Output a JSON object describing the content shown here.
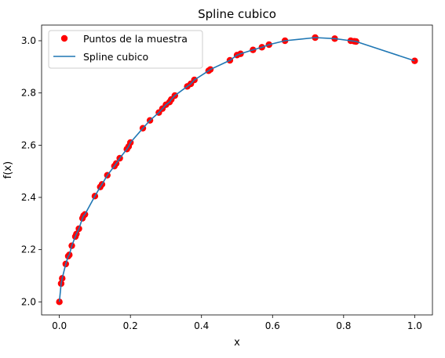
{
  "chart_data": {
    "type": "scatter",
    "title": "Spline cubico",
    "xlabel": "x",
    "ylabel": "f(x)",
    "xlim": [
      -0.05,
      1.05
    ],
    "ylim": [
      1.95,
      3.06
    ],
    "xticks": [
      0.0,
      0.2,
      0.4,
      0.6,
      0.8,
      1.0
    ],
    "xtick_labels": [
      "0.0",
      "0.2",
      "0.4",
      "0.6",
      "0.8",
      "1.0"
    ],
    "yticks": [
      2.0,
      2.2,
      2.4,
      2.6,
      2.8,
      3.0
    ],
    "ytick_labels": [
      "2.0",
      "2.2",
      "2.4",
      "2.6",
      "2.8",
      "3.0"
    ],
    "grid": false,
    "legend_position": "top-left",
    "series": [
      {
        "name": "Puntos de la muestra",
        "kind": "markers",
        "color": "#ff0000",
        "x": [
          0.0,
          0.005,
          0.008,
          0.018,
          0.025,
          0.028,
          0.035,
          0.045,
          0.048,
          0.055,
          0.065,
          0.068,
          0.072,
          0.1,
          0.115,
          0.12,
          0.135,
          0.155,
          0.16,
          0.17,
          0.19,
          0.195,
          0.2,
          0.235,
          0.255,
          0.28,
          0.29,
          0.3,
          0.31,
          0.315,
          0.325,
          0.36,
          0.37,
          0.38,
          0.42,
          0.425,
          0.48,
          0.5,
          0.51,
          0.545,
          0.57,
          0.59,
          0.635,
          0.72,
          0.775,
          0.82,
          0.83,
          0.835,
          1.0
        ],
        "y": [
          2.0,
          2.07,
          2.09,
          2.145,
          2.175,
          2.18,
          2.215,
          2.25,
          2.26,
          2.28,
          2.32,
          2.33,
          2.335,
          2.405,
          2.44,
          2.45,
          2.485,
          2.52,
          2.53,
          2.55,
          2.585,
          2.595,
          2.61,
          2.665,
          2.695,
          2.725,
          2.74,
          2.755,
          2.765,
          2.775,
          2.79,
          2.825,
          2.835,
          2.85,
          2.885,
          2.89,
          2.925,
          2.945,
          2.95,
          2.965,
          2.975,
          2.985,
          3.0,
          3.012,
          3.008,
          3.0,
          2.998,
          2.997,
          2.923
        ]
      },
      {
        "name": "Spline cubico",
        "kind": "line",
        "color": "#1f77b4",
        "x": [
          0.0,
          0.005,
          0.008,
          0.018,
          0.025,
          0.028,
          0.035,
          0.045,
          0.048,
          0.055,
          0.065,
          0.068,
          0.072,
          0.1,
          0.115,
          0.12,
          0.135,
          0.155,
          0.16,
          0.17,
          0.19,
          0.195,
          0.2,
          0.235,
          0.255,
          0.28,
          0.29,
          0.3,
          0.31,
          0.315,
          0.325,
          0.36,
          0.37,
          0.38,
          0.42,
          0.425,
          0.48,
          0.5,
          0.51,
          0.545,
          0.57,
          0.59,
          0.635,
          0.72,
          0.775,
          0.82,
          0.83,
          0.835,
          1.0
        ],
        "y": [
          2.0,
          2.07,
          2.09,
          2.145,
          2.175,
          2.18,
          2.215,
          2.25,
          2.26,
          2.28,
          2.32,
          2.33,
          2.335,
          2.405,
          2.44,
          2.45,
          2.485,
          2.52,
          2.53,
          2.55,
          2.585,
          2.595,
          2.61,
          2.665,
          2.695,
          2.725,
          2.74,
          2.755,
          2.765,
          2.775,
          2.79,
          2.825,
          2.835,
          2.85,
          2.885,
          2.89,
          2.925,
          2.945,
          2.95,
          2.965,
          2.975,
          2.985,
          3.0,
          3.012,
          3.008,
          3.0,
          2.998,
          2.997,
          2.923
        ]
      }
    ]
  }
}
